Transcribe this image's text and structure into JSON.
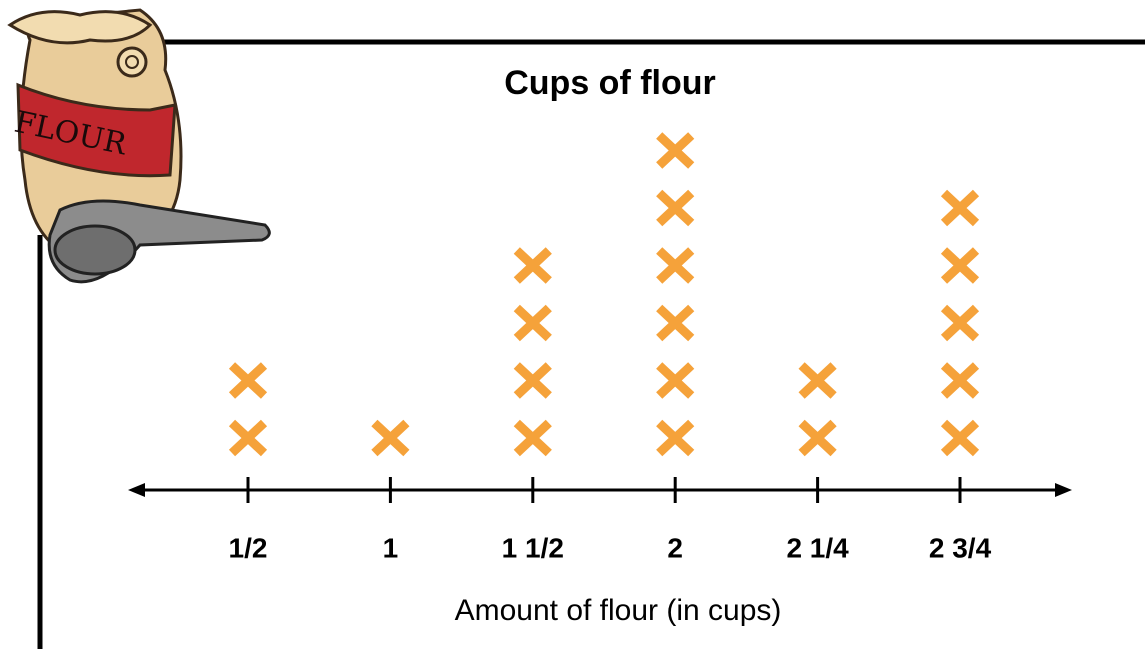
{
  "chart_data": {
    "type": "dot",
    "title": "Cups of flour",
    "x_label": "Amount of flour (in cups)",
    "categories": [
      "1/2",
      "1",
      "1 1/2",
      "2",
      "2 1/4",
      "2 3/4"
    ],
    "values": [
      2,
      1,
      4,
      6,
      2,
      5
    ],
    "color": "#f5a23a"
  },
  "illustration": {
    "label": "FLOUR"
  }
}
